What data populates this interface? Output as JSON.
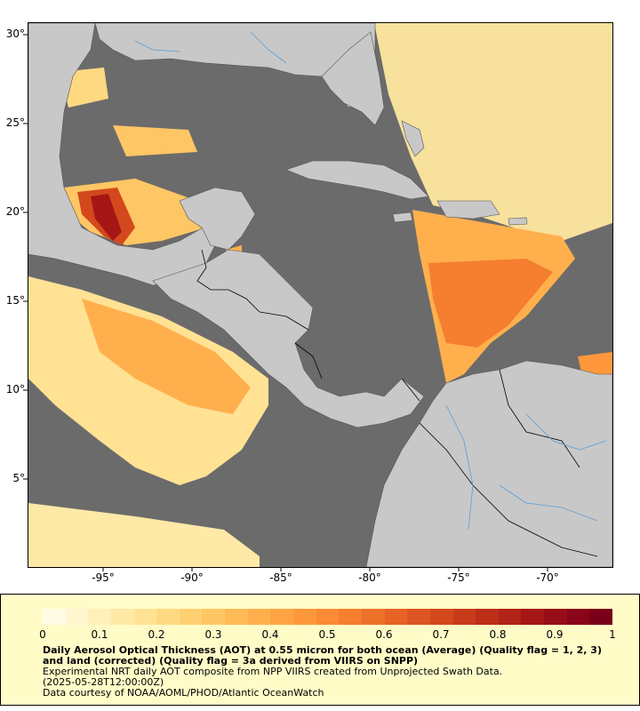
{
  "map": {
    "y_ticks": [
      "30°",
      "25°",
      "20°",
      "15°",
      "10°",
      "5°"
    ],
    "x_ticks": [
      "-95°",
      "-90°",
      "-85°",
      "-80°",
      "-75°",
      "-70°"
    ],
    "colors": {
      "ocean_nodata": "#6b6b6b",
      "land": "#c8c8c8",
      "border": "#000000",
      "rivers": "#5b9bd5"
    }
  },
  "legend": {
    "scale_labels": [
      "0",
      "0.1",
      "0.2",
      "0.3",
      "0.4",
      "0.5",
      "0.6",
      "0.7",
      "0.8",
      "0.9",
      "1"
    ],
    "colorbar_colors": [
      "#fffce6",
      "#fff6d0",
      "#fff0bb",
      "#ffe9a6",
      "#ffe294",
      "#ffd982",
      "#ffd072",
      "#ffc665",
      "#ffbb58",
      "#ffb04d",
      "#ffa444",
      "#ff983c",
      "#fb8b35",
      "#f57e2f",
      "#ee712a",
      "#e66325",
      "#dd5621",
      "#d3481d",
      "#c83b1a",
      "#bd2e18",
      "#b12217",
      "#a41716",
      "#970d18",
      "#890519",
      "#7a001a"
    ],
    "title": "Daily Aerosol Optical Thickness (AOT) at 0.55 micron for both ocean (Average) (Quality flag = 1, 2, 3) and land (corrected) (Quality flag = 3a derived from VIIRS on SNPP)",
    "line1": "Experimental NRT daily AOT composite from NPP VIIRS created from Unprojected Swath Data.",
    "line2": "(2025-05-28T12:00:00Z)",
    "line3": "Data courtesy of NOAA/AOML/PHOD/Atlantic OceanWatch"
  }
}
